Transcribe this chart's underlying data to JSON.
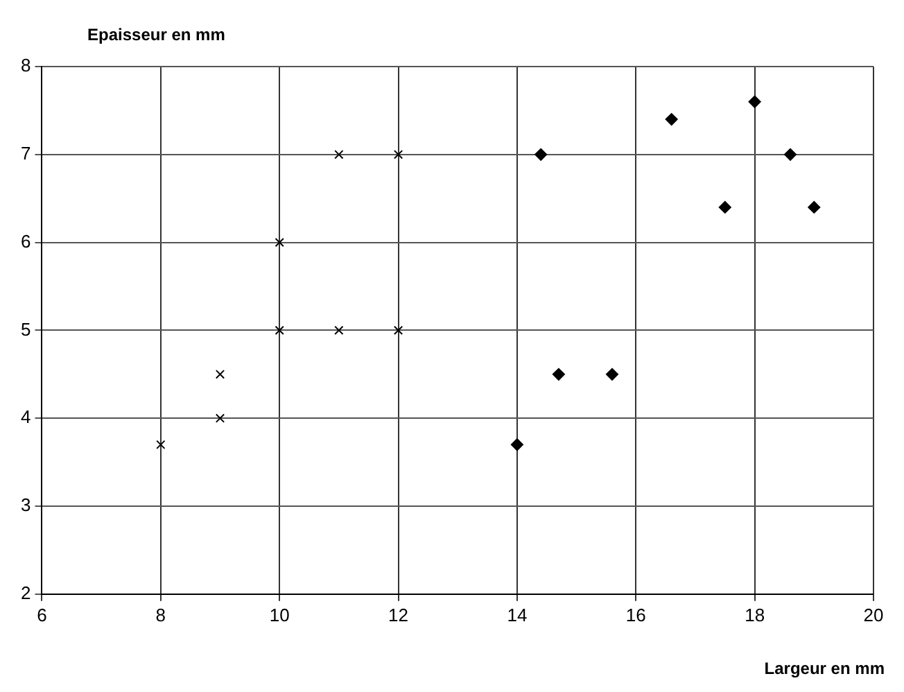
{
  "chart_data": {
    "type": "scatter",
    "xlabel": "Largeur en mm",
    "ylabel": "Epaisseur en mm",
    "xlim": [
      6,
      20
    ],
    "xticks": [
      6,
      8,
      10,
      12,
      14,
      16,
      18,
      20
    ],
    "ylim": [
      2,
      8
    ],
    "yticks": [
      2,
      3,
      4,
      5,
      6,
      7,
      8
    ],
    "grid": true,
    "legend": false,
    "series": [
      {
        "color": "#000000",
        "marker": "cross",
        "x": [
          8,
          9,
          9,
          10,
          10,
          11,
          11,
          12,
          12
        ],
        "values": [
          3.7,
          4.5,
          4,
          6,
          5,
          7,
          5,
          7,
          5
        ]
      },
      {
        "color": "#000000",
        "marker": "diamond",
        "x": [
          14,
          14.4,
          14.7,
          15.6,
          16.6,
          17.5,
          18,
          18.6,
          19
        ],
        "values": [
          3.7,
          7,
          4.5,
          4.5,
          7.4,
          6.4,
          7.6,
          7,
          6.4
        ]
      }
    ]
  }
}
